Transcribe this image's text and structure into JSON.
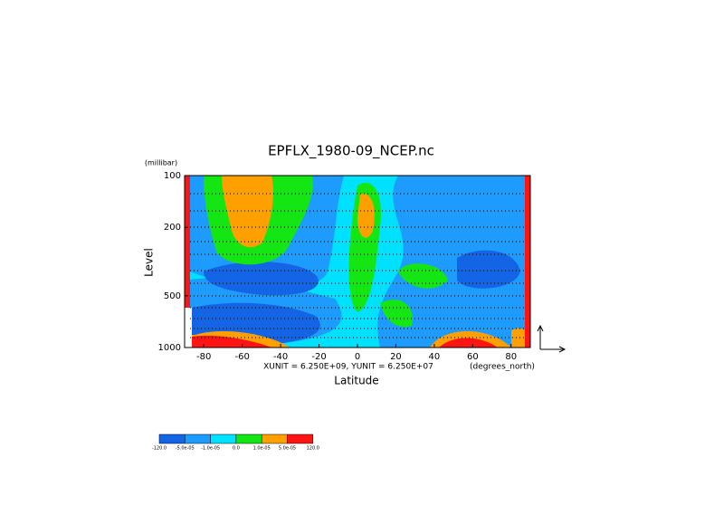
{
  "chart_data": {
    "type": "contour",
    "title": "EPFLX_1980-09_NCEP.nc",
    "xlabel": "Latitude",
    "xunit": "(degrees_north)",
    "ylabel": "Level",
    "yunit": "(millibar)",
    "vector_scale": "XUNIT = 6.250E+09, YUNIT = 6.250E+07",
    "xlim": [
      -90,
      90
    ],
    "xticks": [
      -80,
      -60,
      -40,
      -20,
      0,
      20,
      40,
      60,
      80
    ],
    "ylim": [
      1000,
      100
    ],
    "yticks": [
      100,
      200,
      500,
      1000
    ],
    "log_y": true,
    "levels": [
      {
        "value": -120,
        "label": "-120.0"
      },
      {
        "value": -5e-05,
        "label": "-5.0e-05"
      },
      {
        "value": -1e-05,
        "label": "-1.0e-05"
      },
      {
        "value": 0,
        "label": "0.0"
      },
      {
        "value": 1e-05,
        "label": "1.0e-05"
      },
      {
        "value": 5e-05,
        "label": "5.0e-05"
      },
      {
        "value": 120,
        "label": "120.0"
      }
    ],
    "colors": [
      "#1464e6",
      "#1e9bff",
      "#00e1ff",
      "#14e614",
      "#ffa000",
      "#ff1414"
    ]
  }
}
